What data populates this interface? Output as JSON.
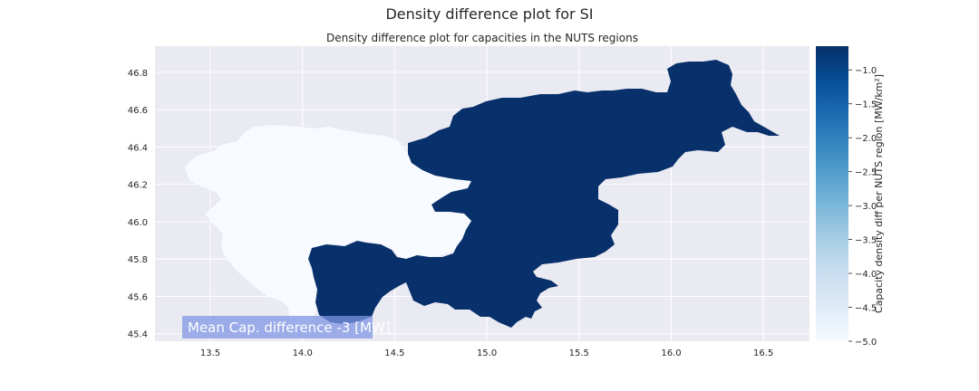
{
  "figure": {
    "suptitle": "Density difference plot for SI",
    "title": "Density difference plot for capacities in the NUTS regions"
  },
  "chart_data": {
    "type": "choropleth",
    "region_country": "SI",
    "x_ticks": [
      "13.5",
      "14.0",
      "14.5",
      "15.0",
      "15.5",
      "16.0",
      "16.5"
    ],
    "y_ticks": [
      "46.8",
      "46.6",
      "46.4",
      "46.2",
      "46.0",
      "45.8",
      "45.6",
      "45.4"
    ],
    "xlim": [
      13.2,
      16.75
    ],
    "ylim": [
      45.36,
      46.94
    ],
    "grid": true,
    "regions": [
      {
        "value": -5.0,
        "color": "#f7fbff"
      },
      {
        "value": -0.7,
        "color": "#08306b"
      }
    ],
    "colorbar": {
      "label": "Capacity density diff per NUTS region [MW/km²]",
      "ticks": [
        "−1.0",
        "−1.5",
        "−2.0",
        "−2.5",
        "−3.0",
        "−3.5",
        "−4.0",
        "−4.5",
        "−5.0"
      ],
      "range": [
        -5.0,
        -0.65
      ],
      "colormap": "Blues",
      "colors": [
        "#f7fbff",
        "#deebf7",
        "#c6dbef",
        "#9ecae1",
        "#6baed6",
        "#4292c6",
        "#2171b5",
        "#08519c",
        "#08306b"
      ]
    },
    "annotation": "Mean Cap. difference -3 [MW]"
  },
  "colors": {
    "axes_bg": "#eaeaf2",
    "grid": "#ffffff",
    "annotation_bg": "#7f96e4",
    "annotation_text": "#ffffff"
  }
}
